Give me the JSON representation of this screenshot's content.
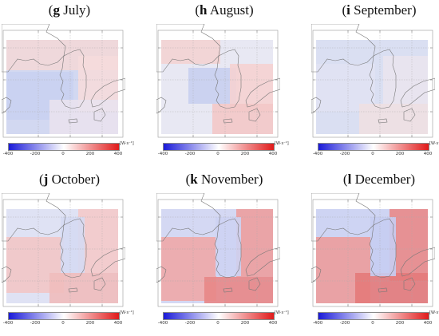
{
  "colorbar": {
    "unit": "[W·s⁻¹]",
    "ticks": [
      "-400",
      "-200",
      "0",
      "200",
      "400"
    ],
    "min_color": "#1a1ad8",
    "mid_color": "#ffffff",
    "max_color": "#e01a1a"
  },
  "panels": [
    {
      "letter": "g",
      "name": " July",
      "pattern": "jul"
    },
    {
      "letter": "h",
      "name": " August",
      "pattern": "aug"
    },
    {
      "letter": "i",
      "name": " September",
      "pattern": "sep"
    },
    {
      "letter": "j",
      "name": " October",
      "pattern": "oct"
    },
    {
      "letter": "k",
      "name": " November",
      "pattern": "nov"
    },
    {
      "letter": "l",
      "name": " December",
      "pattern": "dec"
    }
  ]
}
